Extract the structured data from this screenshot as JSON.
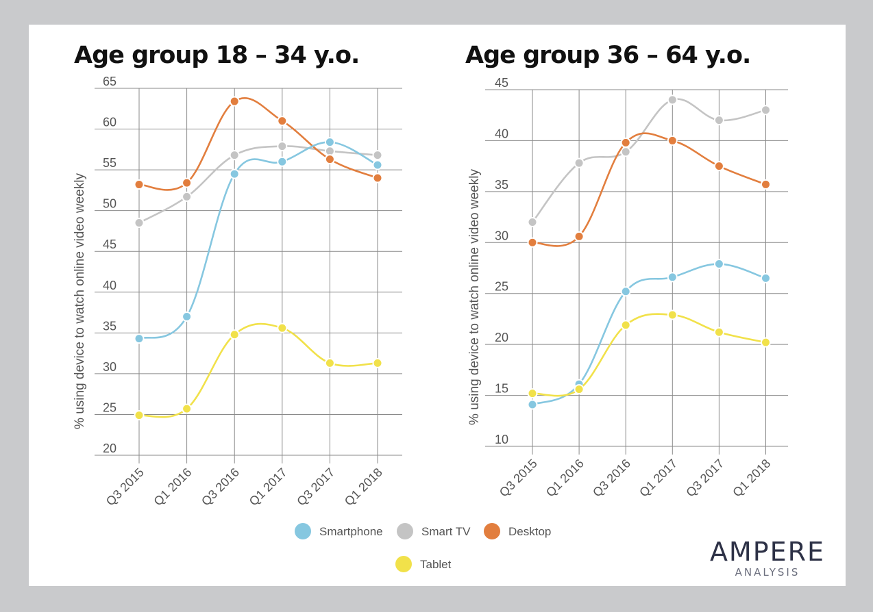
{
  "colors": {
    "Smartphone": "#86c7e0",
    "Smart TV": "#c4c4c4",
    "Desktop": "#e27e3e",
    "Tablet": "#f1e14a",
    "grid": "#8a8a8a",
    "frame": "#c9cacc"
  },
  "chart_data": [
    {
      "type": "line",
      "title": "Age group 18 – 34 y.o.",
      "ylabel": "% using device to watch online video weekly",
      "xlabel": "",
      "categories": [
        "Q3 2015",
        "Q1 2016",
        "Q3 2016",
        "Q1 2017",
        "Q3 2017",
        "Q1 2018"
      ],
      "ylim": [
        20,
        65
      ],
      "yticks": [
        20,
        25,
        30,
        35,
        40,
        45,
        50,
        55,
        60,
        65
      ],
      "grid": true,
      "series": [
        {
          "name": "Smart TV",
          "values": [
            48.5,
            51.7,
            56.8,
            57.9,
            57.3,
            56.8
          ]
        },
        {
          "name": "Desktop",
          "values": [
            53.2,
            53.4,
            63.4,
            61.0,
            56.3,
            54.0
          ]
        },
        {
          "name": "Smartphone",
          "values": [
            34.3,
            37.0,
            54.5,
            56.0,
            58.4,
            55.6
          ]
        },
        {
          "name": "Tablet",
          "values": [
            24.9,
            25.7,
            34.8,
            35.6,
            31.3,
            31.3
          ]
        }
      ]
    },
    {
      "type": "line",
      "title": "Age group 36 – 64 y.o.",
      "ylabel": "% using device to watch online video weekly",
      "xlabel": "",
      "categories": [
        "Q3 2015",
        "Q1 2016",
        "Q3 2016",
        "Q1 2017",
        "Q3 2017",
        "Q1 2018"
      ],
      "ylim": [
        10,
        45
      ],
      "yticks": [
        10,
        15,
        20,
        25,
        30,
        35,
        40,
        45
      ],
      "grid": true,
      "series": [
        {
          "name": "Smart TV",
          "values": [
            32.0,
            37.8,
            38.9,
            44.0,
            42.0,
            43.0
          ]
        },
        {
          "name": "Desktop",
          "values": [
            30.0,
            30.6,
            39.8,
            40.0,
            37.5,
            35.7
          ]
        },
        {
          "name": "Smartphone",
          "values": [
            14.1,
            16.1,
            25.2,
            26.6,
            27.9,
            26.5
          ]
        },
        {
          "name": "Tablet",
          "values": [
            15.2,
            15.6,
            21.9,
            22.9,
            21.2,
            20.2
          ]
        }
      ]
    }
  ],
  "legend": {
    "placement": "bottom",
    "items": [
      "Smartphone",
      "Smart TV",
      "Desktop",
      "Tablet"
    ]
  },
  "brand": {
    "name": "AMPERE",
    "subtitle": "ANALYSIS"
  }
}
